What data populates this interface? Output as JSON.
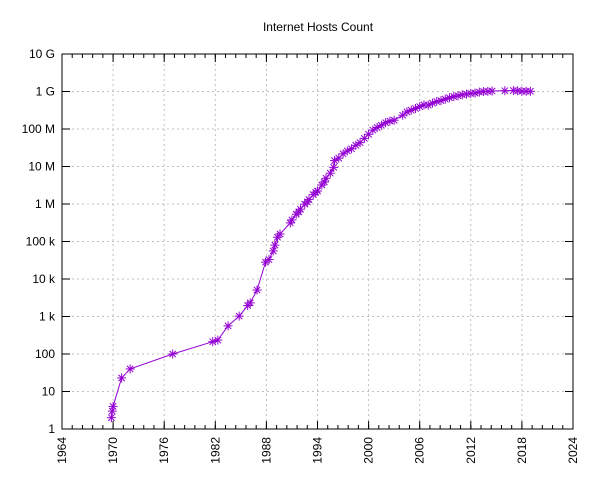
{
  "chart_data": {
    "type": "line",
    "title": "Internet Hosts Count",
    "xlabel": "",
    "ylabel": "",
    "x_scale": "linear",
    "y_scale": "log",
    "xlim": [
      1964,
      2024
    ],
    "ylim": [
      1,
      10000000000
    ],
    "grid": true,
    "legend": "none",
    "marker": "asterisk",
    "series_color": "#9400d3",
    "x_ticks": [
      "1964",
      "1970",
      "1976",
      "1982",
      "1988",
      "1994",
      "2000",
      "2006",
      "2012",
      "2018",
      "2024"
    ],
    "y_ticks": [
      {
        "value": 1,
        "label": "1"
      },
      {
        "value": 10,
        "label": "10"
      },
      {
        "value": 100,
        "label": "100"
      },
      {
        "value": 1000,
        "label": "1 k"
      },
      {
        "value": 10000,
        "label": "10 k"
      },
      {
        "value": 100000,
        "label": "100 k"
      },
      {
        "value": 1000000,
        "label": "1 M"
      },
      {
        "value": 10000000,
        "label": "10 M"
      },
      {
        "value": 100000000,
        "label": "100 M"
      },
      {
        "value": 1000000000,
        "label": "1 G"
      },
      {
        "value": 10000000000,
        "label": "10 G"
      }
    ],
    "x": [
      1969.8,
      1969.9,
      1970.0,
      1971.0,
      1972.0,
      1977.0,
      1981.7,
      1982.3,
      1983.5,
      1984.8,
      1985.8,
      1986.1,
      1986.9,
      1987.9,
      1988.3,
      1988.8,
      1989.0,
      1989.3,
      1989.6,
      1990.8,
      1991.0,
      1991.5,
      1991.8,
      1992.0,
      1992.5,
      1992.8,
      1993.0,
      1993.5,
      1993.8,
      1994.0,
      1994.5,
      1994.8,
      1995.0,
      1995.5,
      1995.9,
      1996.0,
      1996.5,
      1997.0,
      1997.5,
      1998.0,
      1998.5,
      1999.0,
      1999.5,
      2000.0,
      2000.5,
      2001.0,
      2001.5,
      2002.0,
      2002.5,
      2003.0,
      2004.0,
      2004.5,
      2005.0,
      2005.5,
      2006.0,
      2006.5,
      2007.0,
      2007.5,
      2008.0,
      2008.5,
      2009.0,
      2009.5,
      2010.0,
      2010.5,
      2011.0,
      2011.5,
      2012.0,
      2012.5,
      2013.0,
      2013.5,
      2014.0,
      2014.5,
      2016.0,
      2017.0,
      2017.5,
      2018.0,
      2018.5,
      2019.0
    ],
    "values": [
      2,
      3,
      4,
      23,
      40,
      100,
      213,
      235,
      562,
      1024,
      1961,
      2308,
      5089,
      28174,
      33000,
      56000,
      80000,
      130000,
      159000,
      313000,
      376000,
      535000,
      617000,
      727000,
      992000,
      1136000,
      1313000,
      1776000,
      2056000,
      2217000,
      3212000,
      3864000,
      4852000,
      6642000,
      9472000,
      14352000,
      16729000,
      21819000,
      26053000,
      29670000,
      36739000,
      43230000,
      56218000,
      72398000,
      93047000,
      109574000,
      125888000,
      147345000,
      162128000,
      171638000,
      233101000,
      285139000,
      317646000,
      353284000,
      394991000,
      439286000,
      433193000,
      489774000,
      541677000,
      570937000,
      625226000,
      681064000,
      732740000,
      768913000,
      818374000,
      849869000,
      888239000,
      908585000,
      963518000,
      996230000,
      1010251000,
      1028000000,
      1048766000,
      1062660000,
      1048000000,
      1015000000,
      1018000000,
      1013000000
    ]
  }
}
